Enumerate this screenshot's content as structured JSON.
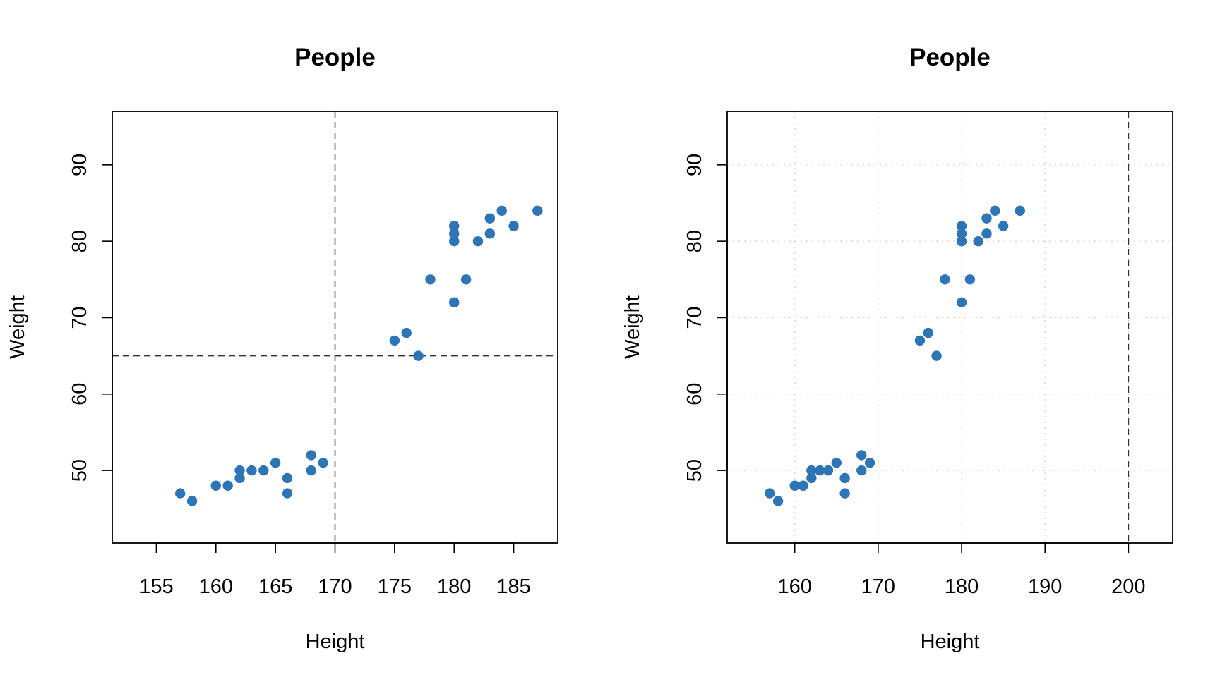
{
  "chart_data": [
    {
      "type": "scatter",
      "title": "People",
      "xlabel": "Height",
      "ylabel": "Weight",
      "xlim": [
        151.3,
        188.7
      ],
      "ylim": [
        40.5,
        97.0
      ],
      "x_ticks": [
        155,
        160,
        165,
        170,
        175,
        180,
        185
      ],
      "y_ticks": [
        50,
        60,
        70,
        80,
        90
      ],
      "grid": false,
      "reference_lines": [
        {
          "orientation": "vertical",
          "value": 170,
          "style": "dashed"
        },
        {
          "orientation": "horizontal",
          "value": 65,
          "style": "dashed"
        }
      ],
      "point_color": "#2E75B6",
      "x": [
        157,
        158,
        160,
        161,
        162,
        162,
        163,
        164,
        165,
        166,
        166,
        168,
        168,
        169,
        175,
        176,
        177,
        178,
        180,
        180,
        180,
        180,
        181,
        182,
        183,
        183,
        184,
        185,
        187
      ],
      "y": [
        47,
        46,
        48,
        48,
        50,
        49,
        50,
        50,
        51,
        49,
        47,
        52,
        50,
        51,
        67,
        68,
        65,
        75,
        72,
        80,
        81,
        82,
        75,
        80,
        81,
        83,
        84,
        82,
        84
      ]
    },
    {
      "type": "scatter",
      "title": "People",
      "xlabel": "Height",
      "ylabel": "Weight",
      "xlim": [
        151.9,
        205.3
      ],
      "ylim": [
        40.5,
        97.0
      ],
      "x_ticks": [
        160,
        170,
        180,
        190,
        200
      ],
      "y_ticks": [
        50,
        60,
        70,
        80,
        90
      ],
      "grid": true,
      "reference_lines": [
        {
          "orientation": "vertical",
          "value": 200,
          "style": "dashed"
        }
      ],
      "point_color": "#2E75B6",
      "x": [
        157,
        158,
        160,
        161,
        162,
        162,
        163,
        164,
        165,
        166,
        166,
        168,
        168,
        169,
        175,
        176,
        177,
        178,
        180,
        180,
        180,
        180,
        181,
        182,
        183,
        183,
        184,
        185,
        187
      ],
      "y": [
        47,
        46,
        48,
        48,
        50,
        49,
        50,
        50,
        51,
        49,
        47,
        52,
        50,
        51,
        67,
        68,
        65,
        75,
        72,
        80,
        81,
        82,
        75,
        80,
        81,
        83,
        84,
        82,
        84
      ]
    }
  ]
}
